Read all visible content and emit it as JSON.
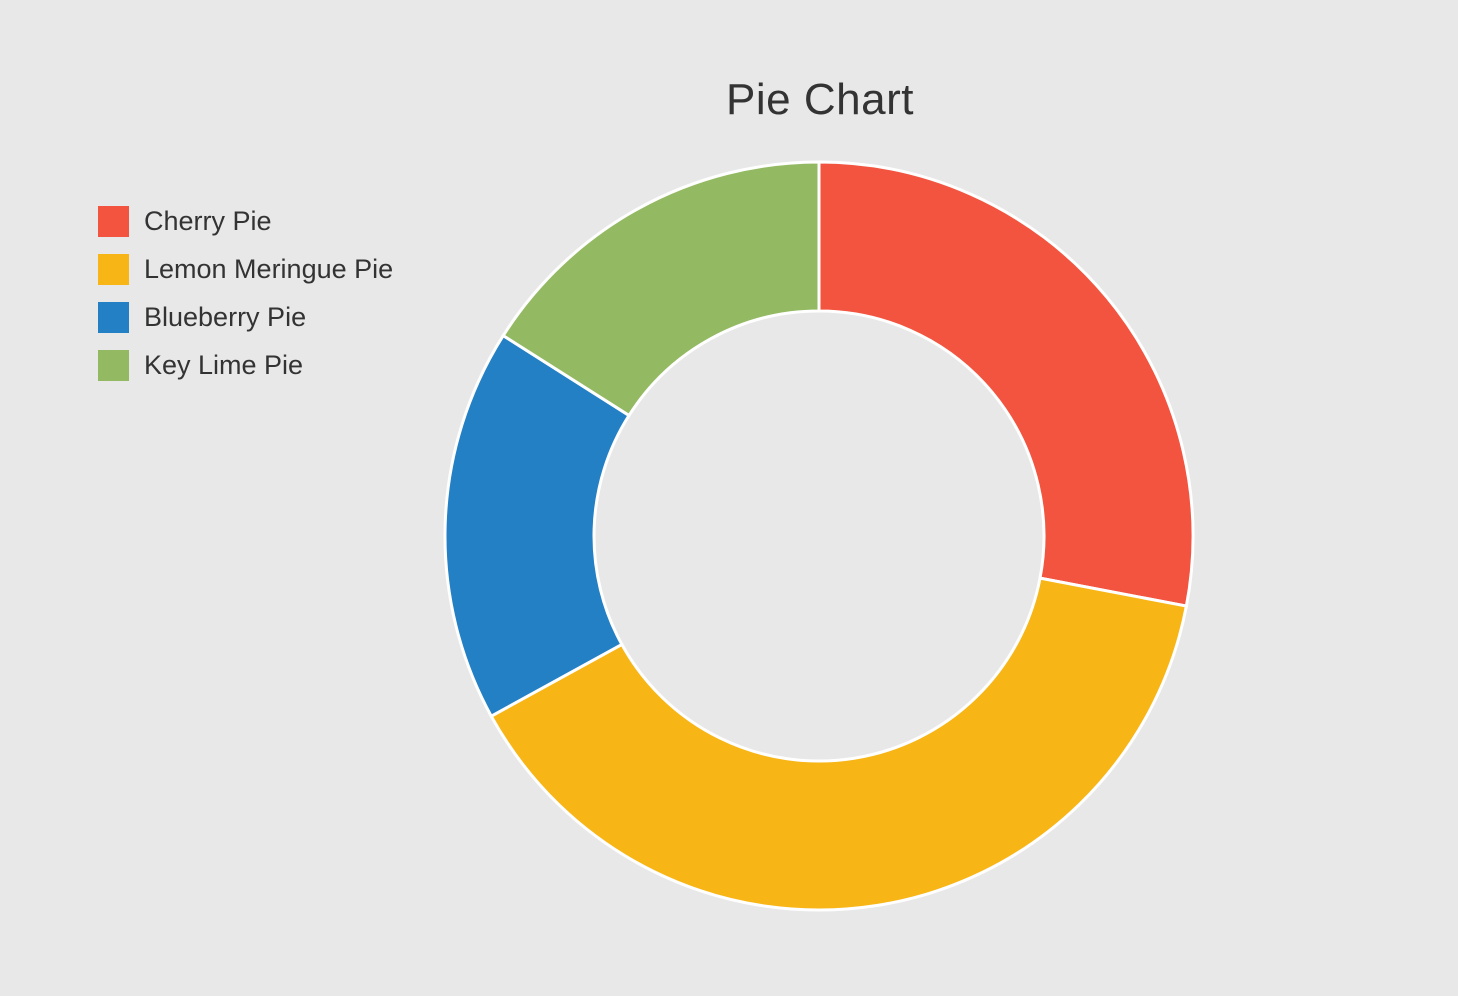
{
  "chart_data": {
    "type": "pie",
    "style": "donut",
    "title": "Pie Chart",
    "legend_position": "left",
    "start_angle_degrees": 0,
    "direction": "clockwise",
    "categories": [
      "Cherry Pie",
      "Lemon Meringue Pie",
      "Blueberry Pie",
      "Key Lime Pie"
    ],
    "values": [
      28,
      39,
      17,
      16
    ],
    "colors": [
      "#f2543f",
      "#f7b516",
      "#2480c4",
      "#93b962"
    ],
    "background": "#e8e8e8"
  }
}
